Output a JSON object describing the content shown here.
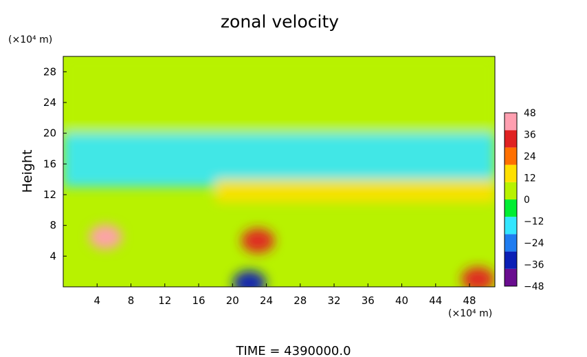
{
  "chart_data": {
    "type": "heatmap",
    "title": "zonal velocity",
    "ylabel": "Height",
    "y_unit_label": "(×10⁴ m)",
    "x_unit_label": "(×10⁴ m)",
    "xlim": [
      0,
      51
    ],
    "ylim": [
      0,
      30
    ],
    "x_ticks": [
      4,
      8,
      12,
      16,
      20,
      24,
      28,
      32,
      36,
      40,
      44,
      48
    ],
    "y_ticks": [
      4,
      8,
      12,
      16,
      20,
      24,
      28
    ],
    "colorbar": {
      "levels": [
        48,
        36,
        24,
        12,
        0,
        -12,
        -24,
        -36,
        -48
      ],
      "range": [
        -48,
        48
      ],
      "colors": [
        "#6a0d8f",
        "#0b1fb5",
        "#1f7cf0",
        "#33e6ff",
        "#00ee33",
        "#b8f200",
        "#ffe000",
        "#ff7000",
        "#e02222",
        "#ff9fb0"
      ]
    },
    "field_features": [
      {
        "name": "upper layer",
        "x": [
          0,
          51
        ],
        "y": [
          20,
          30
        ],
        "value": 0
      },
      {
        "name": "negative band",
        "x": [
          0,
          51
        ],
        "y": [
          13,
          20
        ],
        "value": -18
      },
      {
        "name": "positive jet",
        "x": [
          18,
          51
        ],
        "y": [
          11,
          14
        ],
        "value": 10
      },
      {
        "name": "low-level maximum west",
        "x": 5,
        "y": 6.5,
        "value": 40
      },
      {
        "name": "low-level maximum centre",
        "x": 23,
        "y": 6,
        "value": 32
      },
      {
        "name": "surface maximum east",
        "x": 49,
        "y": 1,
        "value": 34
      },
      {
        "name": "surface minimum",
        "x": 22,
        "y": 0.5,
        "value": -34
      }
    ]
  },
  "footer": {
    "time_label": "TIME  =  4390000.0"
  }
}
